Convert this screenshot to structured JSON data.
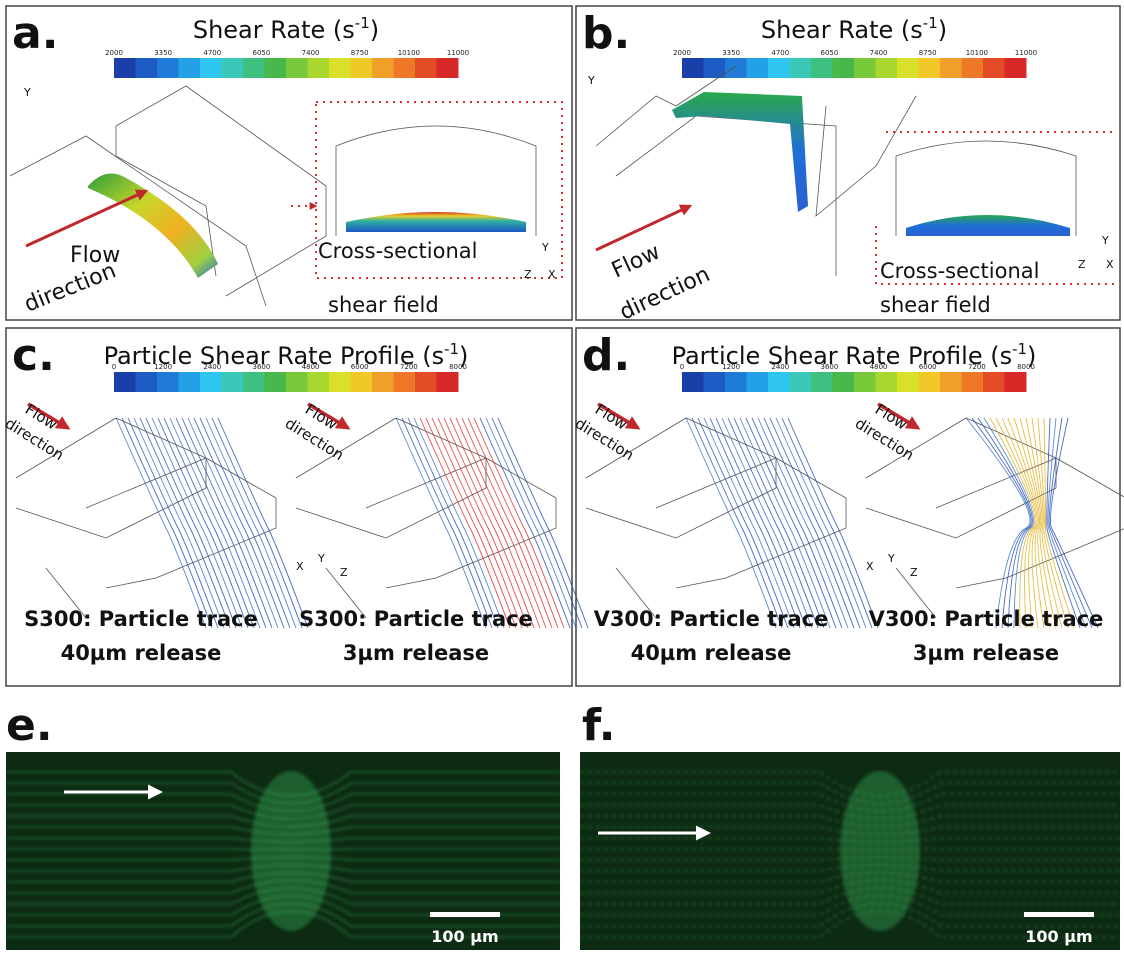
{
  "panels": [
    {
      "label": "a.",
      "title": {
        "text": "Shear Rate (s",
        "sup": "-1",
        "close": ")"
      },
      "colorbar_ticks": [
        "2000",
        "3350",
        "4700",
        "6050",
        "7400",
        "8750",
        "10100",
        "11000"
      ],
      "annotations": [
        "Flow",
        "direction",
        "Cross-sectional",
        "shear field"
      ],
      "axes": [
        "Y",
        "Y",
        "Z",
        "X"
      ]
    },
    {
      "label": "b.",
      "title": {
        "text": "Shear Rate (s",
        "sup": "-1",
        "close": ")"
      },
      "colorbar_ticks": [
        "2000",
        "3350",
        "4700",
        "6050",
        "7400",
        "8750",
        "10100",
        "11000"
      ],
      "annotations": [
        "Flow",
        "direction",
        "Cross-sectional",
        "shear field"
      ],
      "axes": [
        "Y",
        "Y",
        "Z",
        "X"
      ]
    },
    {
      "label": "c.",
      "title": {
        "text": "Particle Shear Rate Profile (s",
        "sup": "-1",
        "close": ")"
      },
      "colorbar_ticks": [
        "0",
        "1200",
        "2400",
        "3600",
        "4800",
        "6000",
        "7200",
        "8000"
      ],
      "annotations": [
        "Flow",
        "direction",
        "Flow",
        "direction"
      ],
      "axes": [
        "X",
        "Y",
        "Z"
      ],
      "captions": [
        [
          "S300: Particle trace",
          "40µm release"
        ],
        [
          "S300: Particle trace",
          "3µm release"
        ]
      ]
    },
    {
      "label": "d.",
      "title": {
        "text": "Particle Shear Rate Profile (s",
        "sup": "-1",
        "close": ")"
      },
      "colorbar_ticks": [
        "0",
        "1200",
        "2400",
        "3600",
        "4800",
        "6000",
        "7200",
        "8000"
      ],
      "annotations": [
        "Flow",
        "direction",
        "Flow",
        "direction"
      ],
      "axes": [
        "X",
        "Y",
        "Z"
      ],
      "captions": [
        [
          "V300: Particle trace",
          "40µm release"
        ],
        [
          "V300: Particle trace",
          "3µm release"
        ]
      ]
    }
  ],
  "images": [
    {
      "label": "e.",
      "scale_bar": "100 µm"
    },
    {
      "label": "f.",
      "scale_bar": "100 µm"
    }
  ]
}
